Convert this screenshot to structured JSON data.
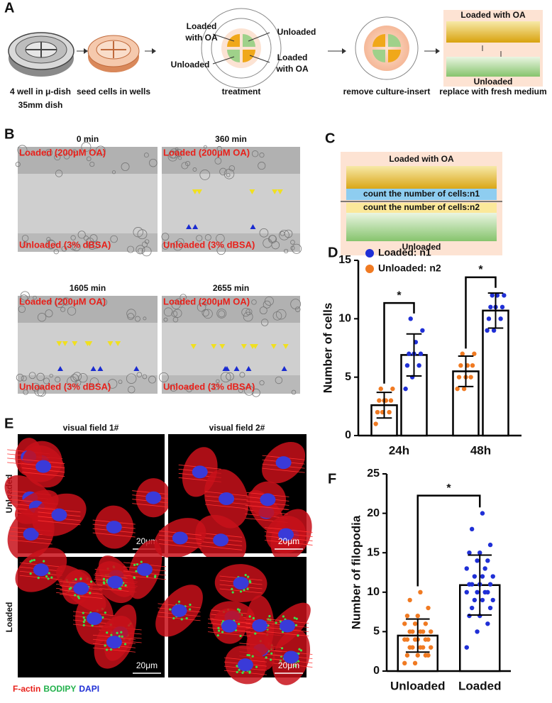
{
  "figure": {
    "panel_a": {
      "label": "A",
      "dish_caption": [
        "4 well in μ-dish",
        "35mm dish"
      ],
      "seed_caption": "seed cells in wells",
      "treatment": {
        "loaded_top": [
          "Loaded",
          "with OA"
        ],
        "unloaded_top": "Unloaded",
        "unloaded_bottom": "Unloaded",
        "loaded_bottom": [
          "Loaded",
          "with OA"
        ],
        "caption": "treatment"
      },
      "remove_caption": "remove culture-insert",
      "replace": {
        "top": "Loaded with OA",
        "bottom": "Unloaded",
        "caption": "replace with fresh medium"
      }
    },
    "panel_b": {
      "label": "B",
      "times": [
        "0 min",
        "360 min",
        "1605 min",
        "2655 min"
      ],
      "top_label": "Loaded (200μM OA)",
      "bottom_label": "Unloaded (3% dBSA)"
    },
    "panel_c": {
      "label": "C",
      "top": "Loaded with OA",
      "count_n1": "count the number of cells:n1",
      "count_n2": "count the number of cells:n2",
      "bottom": "Unloaded"
    },
    "panel_e": {
      "label": "E",
      "columns": [
        "visual field 1#",
        "visual field 2#"
      ],
      "rows": [
        "Unloaded",
        "Loaded"
      ],
      "scale_bar": "20μm",
      "stains": [
        {
          "name": "F-actin",
          "color": "#e8201a"
        },
        {
          "name": "BODIPY",
          "color": "#22b14c"
        },
        {
          "name": "DAPI",
          "color": "#1f2fd6"
        }
      ]
    }
  },
  "chart_data": [
    {
      "type": "bar",
      "panel_label": "D",
      "y_label": "Number of cells",
      "categories": [
        "24h",
        "48h"
      ],
      "series": [
        {
          "name": "Loaded: n1",
          "color": "#1f2fd6",
          "values": [
            6.9,
            10.7
          ],
          "errors": [
            1.8,
            1.5
          ],
          "points": [
            [
              4,
              5,
              6,
              6,
              7,
              7,
              7,
              8,
              9,
              10
            ],
            [
              9,
              9,
              10,
              10,
              11,
              11,
              11,
              12,
              12,
              12
            ]
          ]
        },
        {
          "name": "Unloaded: n2",
          "color": "#f07a22",
          "values": [
            2.6,
            5.5
          ],
          "errors": [
            1.1,
            1.3
          ],
          "points": [
            [
              1,
              2,
              2,
              2,
              3,
              3,
              3,
              3,
              4,
              4
            ],
            [
              4,
              4,
              5,
              5,
              5,
              6,
              6,
              6,
              7,
              7
            ]
          ]
        }
      ],
      "ylim": [
        0,
        15
      ],
      "yticks": [
        0,
        5,
        10,
        15
      ],
      "annotations": [
        "*",
        "*"
      ],
      "legend": "top-left"
    },
    {
      "type": "bar",
      "panel_label": "F",
      "y_label": "Number of filopodia",
      "categories": [
        "Unloaded",
        "Loaded"
      ],
      "values": [
        4.5,
        10.9
      ],
      "errors": [
        2.1,
        3.8
      ],
      "colors": [
        "#f07a22",
        "#1f2fd6"
      ],
      "points": [
        [
          1,
          1,
          2,
          2,
          2,
          2,
          3,
          3,
          3,
          3,
          3,
          4,
          4,
          4,
          4,
          4,
          4,
          5,
          5,
          5,
          5,
          5,
          6,
          6,
          6,
          7,
          7,
          8,
          9,
          10
        ],
        [
          3,
          5,
          6,
          7,
          7,
          8,
          8,
          9,
          9,
          9,
          10,
          10,
          10,
          10,
          11,
          11,
          11,
          11,
          12,
          12,
          12,
          13,
          13,
          14,
          14,
          15,
          15,
          16,
          18,
          20
        ]
      ],
      "ylim": [
        0,
        25
      ],
      "yticks": [
        0,
        5,
        10,
        15,
        20,
        25
      ],
      "annotations": [
        "*"
      ]
    }
  ]
}
